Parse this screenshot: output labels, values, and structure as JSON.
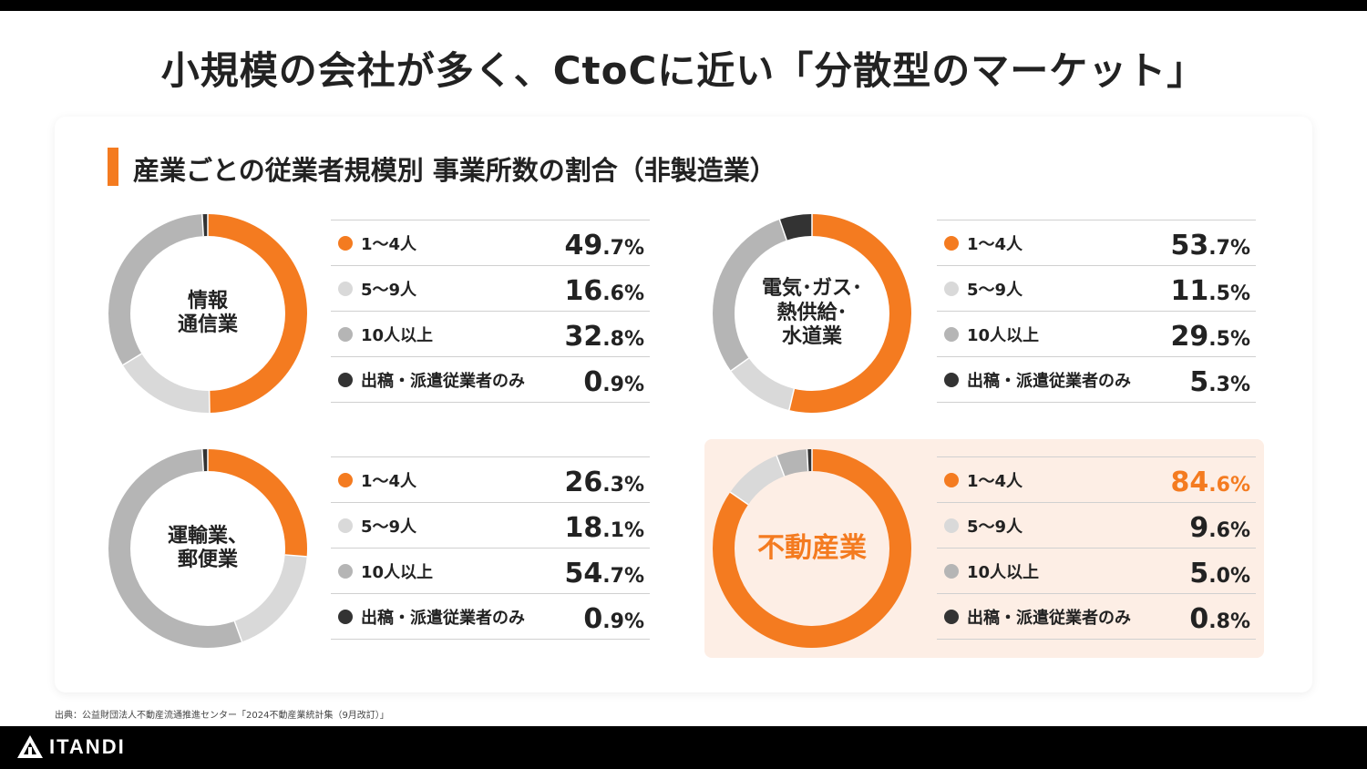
{
  "title": "小規模の会社が多く、CtoCに近い「分散型のマーケット」",
  "chart_title": "産業ごとの従業者規模別 事業所数の割合（非製造業）",
  "source": "出典：公益財団法人不動産流通推進センター「2024不動産業統計集（9月改訂）」",
  "brand": "ITANDI",
  "colors": {
    "accent": "#f47b20",
    "light_gray": "#d9d9d9",
    "mid_gray": "#b5b5b5",
    "dark": "#333333",
    "highlight_bg": "#fdeee5"
  },
  "chart_data": [
    {
      "type": "pie",
      "title": "情報\n通信業",
      "categories": [
        "1〜4人",
        "5〜9人",
        "10人以上",
        "出稿・派遣従業者のみ"
      ],
      "values": [
        49.7,
        16.6,
        32.8,
        0.9
      ],
      "value_labels": [
        [
          "49",
          ".7%"
        ],
        [
          "16",
          ".6%"
        ],
        [
          "32",
          ".8%"
        ],
        [
          "0",
          ".9%"
        ]
      ]
    },
    {
      "type": "pie",
      "title": "電気･ガス･\n熱供給･\n水道業",
      "categories": [
        "1〜4人",
        "5〜9人",
        "10人以上",
        "出稿・派遣従業者のみ"
      ],
      "values": [
        53.7,
        11.5,
        29.5,
        5.3
      ],
      "value_labels": [
        [
          "53",
          ".7%"
        ],
        [
          "11",
          ".5%"
        ],
        [
          "29",
          ".5%"
        ],
        [
          "5",
          ".3%"
        ]
      ]
    },
    {
      "type": "pie",
      "title": "運輸業、\n郵便業",
      "categories": [
        "1〜4人",
        "5〜9人",
        "10人以上",
        "出稿・派遣従業者のみ"
      ],
      "values": [
        26.3,
        18.1,
        54.7,
        0.9
      ],
      "value_labels": [
        [
          "26",
          ".3%"
        ],
        [
          "18",
          ".1%"
        ],
        [
          "54",
          ".7%"
        ],
        [
          "0",
          ".9%"
        ]
      ]
    },
    {
      "type": "pie",
      "title": "不動産業",
      "highlight": true,
      "categories": [
        "1〜4人",
        "5〜9人",
        "10人以上",
        "出稿・派遣従業者のみ"
      ],
      "values": [
        84.6,
        9.6,
        5.0,
        0.8
      ],
      "value_labels": [
        [
          "84",
          ".6%"
        ],
        [
          "9",
          ".6%"
        ],
        [
          "5",
          ".0%"
        ],
        [
          "0",
          ".8%"
        ]
      ]
    }
  ]
}
